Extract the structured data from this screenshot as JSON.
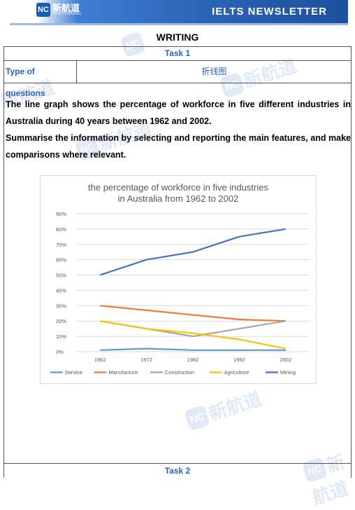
{
  "header": {
    "logo_badge": "NC",
    "logo_cn": "新航道",
    "logo_en": "NEW CHANNEL",
    "newsletter": "IELTS NEWSLETTER"
  },
  "section_title": "WRITING",
  "task1": {
    "label": "Task 1",
    "question_type_label": "Type of questions",
    "question_type_value": "折线图",
    "prompt_1": "The line graph shows the percentage of workforce in five different industries in Australia during 40 years between 1962 and 2002.",
    "prompt_2": "Summarise the information by selecting and reporting the main features, and make comparisons where relevant."
  },
  "task2": {
    "label": "Task 2"
  },
  "watermark": {
    "badge": "NC",
    "cn": "新航道"
  },
  "colors": {
    "accent": "#2a62b5",
    "service": "#5b9bd5",
    "manufacture": "#ed7d31",
    "construction": "#a5a5a5",
    "agriculture": "#ffc000",
    "mining": "#4472c4"
  },
  "chart_data": {
    "type": "line",
    "title": "the percentage of workforce in five industries in Australia from 1962 to 2002",
    "x": [
      "1962",
      "1972",
      "1982",
      "1992",
      "2002"
    ],
    "ylim": [
      0,
      90
    ],
    "yticks": [
      "0%",
      "10%",
      "20%",
      "30%",
      "40%",
      "50%",
      "60%",
      "70%",
      "80%",
      "90%"
    ],
    "grid": true,
    "legend": "bottom",
    "series": [
      {
        "name": "Service",
        "color": "#5b9bd5",
        "values": [
          1,
          2,
          1,
          1,
          1
        ]
      },
      {
        "name": "Manufacture",
        "color": "#ed7d31",
        "values": [
          30,
          27,
          24,
          21,
          20
        ]
      },
      {
        "name": "Construction",
        "color": "#a5a5a5",
        "values": [
          20,
          15,
          10,
          15,
          20
        ]
      },
      {
        "name": "Agriculture",
        "color": "#ffc000",
        "values": [
          20,
          15,
          12,
          8,
          2
        ]
      },
      {
        "name": "Mining",
        "color": "#4472c4",
        "values": [
          50,
          60,
          65,
          75,
          80
        ]
      }
    ]
  }
}
